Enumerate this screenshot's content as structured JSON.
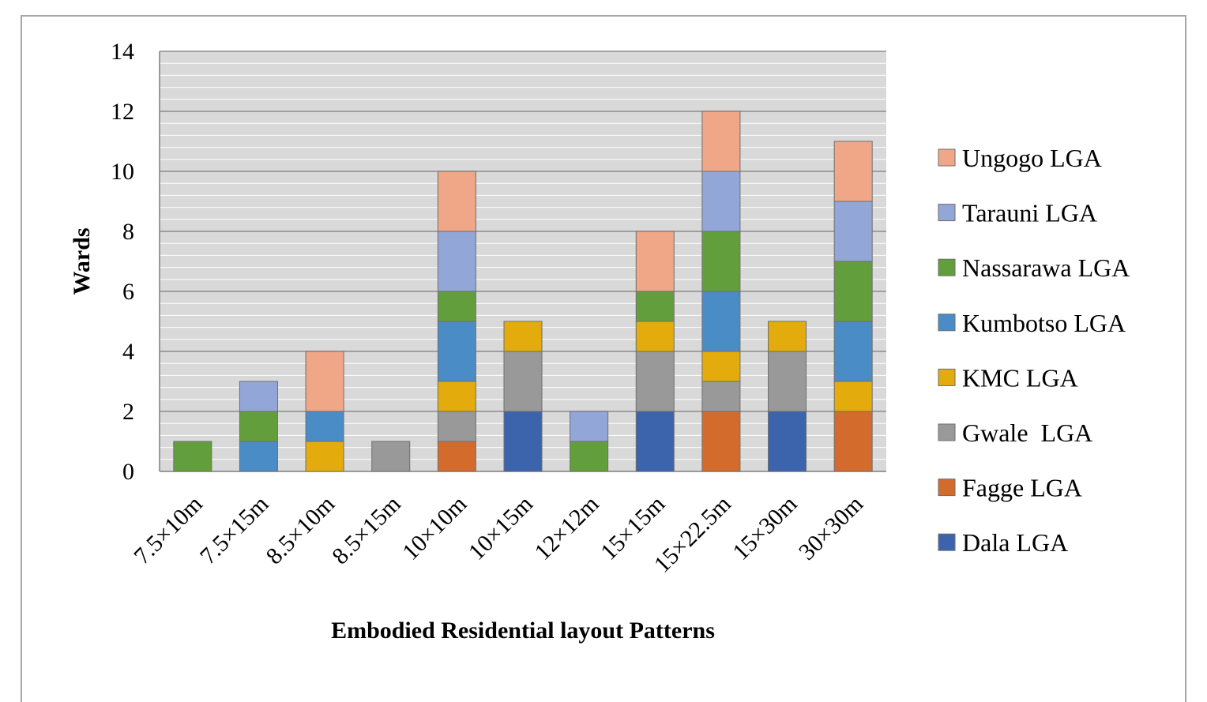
{
  "chart_data": {
    "type": "bar",
    "stacked": true,
    "categories": [
      "7.5×10m",
      "7.5×15m",
      "8.5×10m",
      "8.5×15m",
      "10×10m",
      "10×15m",
      "12×12m",
      "15×15m",
      "15×22.5m",
      "15×30m",
      "30×30m"
    ],
    "series": [
      {
        "name": "Dala LGA",
        "color": "#3b64ad",
        "values": [
          0,
          0,
          0,
          0,
          0,
          2,
          0,
          2,
          0,
          2,
          0
        ]
      },
      {
        "name": "Fagge LGA",
        "color": "#d36b2c",
        "values": [
          0,
          0,
          0,
          0,
          1,
          0,
          0,
          0,
          2,
          0,
          2
        ]
      },
      {
        "name": "Gwale  LGA",
        "color": "#999999",
        "values": [
          0,
          0,
          0,
          1,
          1,
          2,
          0,
          2,
          1,
          2,
          0
        ]
      },
      {
        "name": "KMC LGA",
        "color": "#e3ac0c",
        "values": [
          0,
          0,
          1,
          0,
          1,
          1,
          0,
          1,
          1,
          1,
          1
        ]
      },
      {
        "name": "Kumbotso LGA",
        "color": "#4a8cc6",
        "values": [
          0,
          1,
          1,
          0,
          2,
          0,
          0,
          0,
          2,
          0,
          2
        ]
      },
      {
        "name": "Nassarawa LGA",
        "color": "#639e3c",
        "values": [
          1,
          1,
          0,
          0,
          1,
          0,
          1,
          1,
          2,
          0,
          2
        ]
      },
      {
        "name": "Tarauni LGA",
        "color": "#93a6d8",
        "values": [
          0,
          1,
          0,
          0,
          2,
          0,
          1,
          0,
          2,
          0,
          2
        ]
      },
      {
        "name": "Ungogo LGA",
        "color": "#f0a788",
        "values": [
          0,
          0,
          2,
          0,
          2,
          0,
          0,
          2,
          2,
          0,
          2
        ]
      }
    ],
    "ylabel": "Wards",
    "xlabel": "Embodied Residential layout Patterns",
    "ylim": [
      0,
      14
    ],
    "yticks": [
      0,
      2,
      4,
      6,
      8,
      10,
      12,
      14
    ],
    "grid": true,
    "legend": "right"
  }
}
